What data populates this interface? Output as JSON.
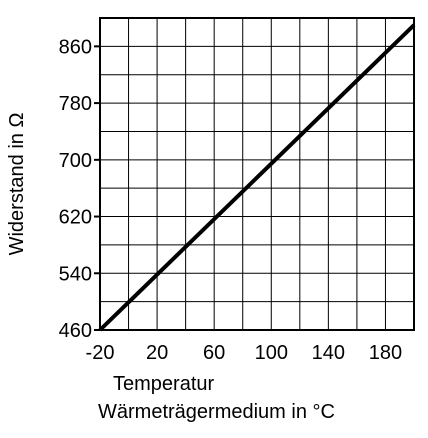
{
  "chart_data": {
    "type": "line",
    "xlabel_line1": "Temperatur",
    "xlabel_line2": "Wärmeträgermedium in °C",
    "ylabel": "Widerstand in Ω",
    "xlim": [
      -20,
      200
    ],
    "ylim": [
      460,
      900
    ],
    "x_ticks": [
      -20,
      20,
      60,
      100,
      140,
      180
    ],
    "y_ticks": [
      460,
      540,
      620,
      700,
      780,
      860
    ],
    "x_tick_labels": [
      "-20",
      "20",
      "60",
      "100",
      "140",
      "180"
    ],
    "y_tick_labels": [
      "460",
      "540",
      "620",
      "700",
      "780",
      "860"
    ],
    "x_grid_step": 20,
    "y_grid_step": 40,
    "grid": true,
    "series": [
      {
        "x": [
          -20,
          200
        ],
        "y": [
          460,
          890
        ]
      }
    ],
    "colors": {
      "line": "#000000",
      "grid": "#000000",
      "background": "#ffffff"
    }
  }
}
